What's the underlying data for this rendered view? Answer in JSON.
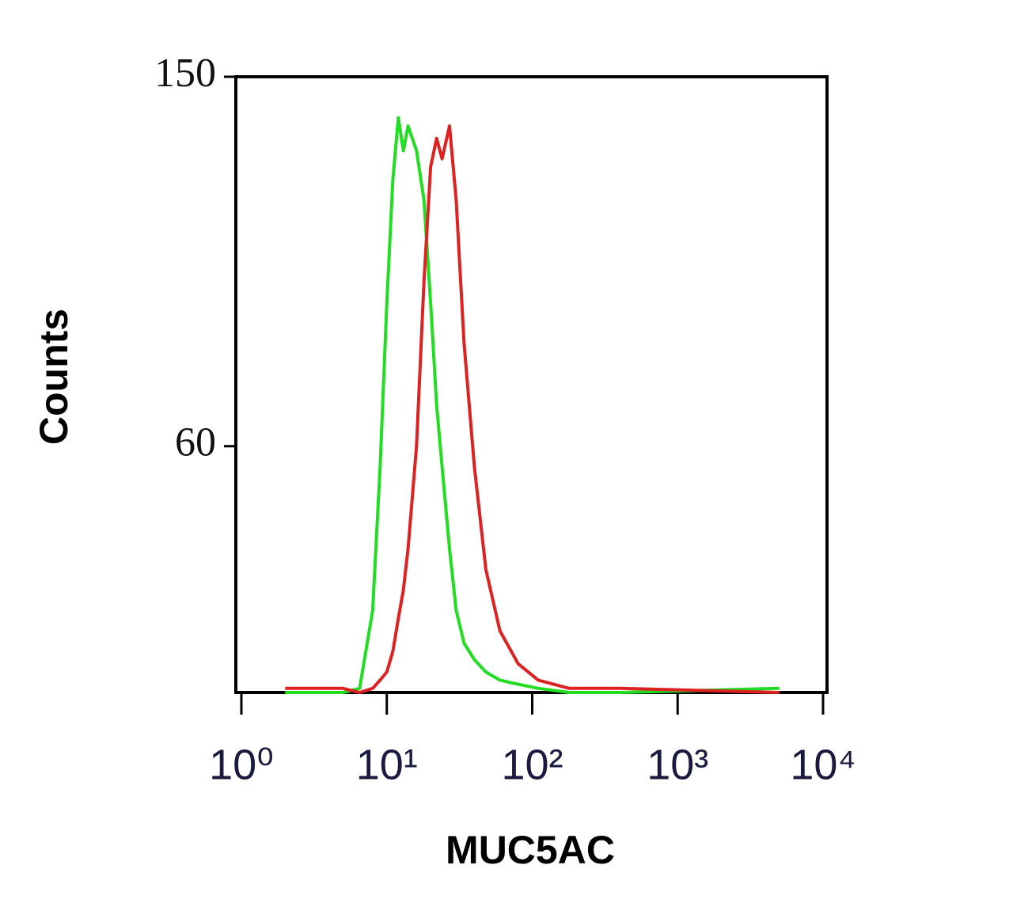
{
  "chart_data": {
    "type": "line",
    "y_label": "Counts",
    "x_label": "MUC5AC",
    "log_x": true,
    "xlim": [
      1,
      10000
    ],
    "xticks": [
      {
        "value": 1,
        "label": "10⁰"
      },
      {
        "value": 10,
        "label": "10¹"
      },
      {
        "value": 100,
        "label": "10²"
      },
      {
        "value": 1000,
        "label": "10³"
      },
      {
        "value": 10000,
        "label": "10⁴"
      }
    ],
    "ylim": [
      0,
      150
    ],
    "yticks": [
      60,
      150
    ],
    "x": [
      2,
      5,
      6.5,
      8,
      9,
      10,
      11,
      12,
      13,
      14,
      16,
      18,
      20,
      22,
      24,
      27,
      30,
      34,
      40,
      48,
      60,
      80,
      110,
      180,
      400,
      5000
    ],
    "series": [
      {
        "color": "#22dd22",
        "values": [
          0,
          0,
          1,
          20,
          55,
          95,
          125,
          140,
          132,
          138,
          132,
          120,
          95,
          70,
          55,
          35,
          20,
          12,
          8,
          5,
          3,
          2,
          1,
          0,
          0,
          1
        ]
      },
      {
        "color": "#dd2222",
        "values": [
          1,
          1,
          0,
          1,
          3,
          5,
          10,
          18,
          25,
          35,
          60,
          100,
          128,
          135,
          130,
          138,
          120,
          85,
          55,
          30,
          15,
          7,
          3,
          1,
          1,
          0
        ]
      }
    ]
  }
}
